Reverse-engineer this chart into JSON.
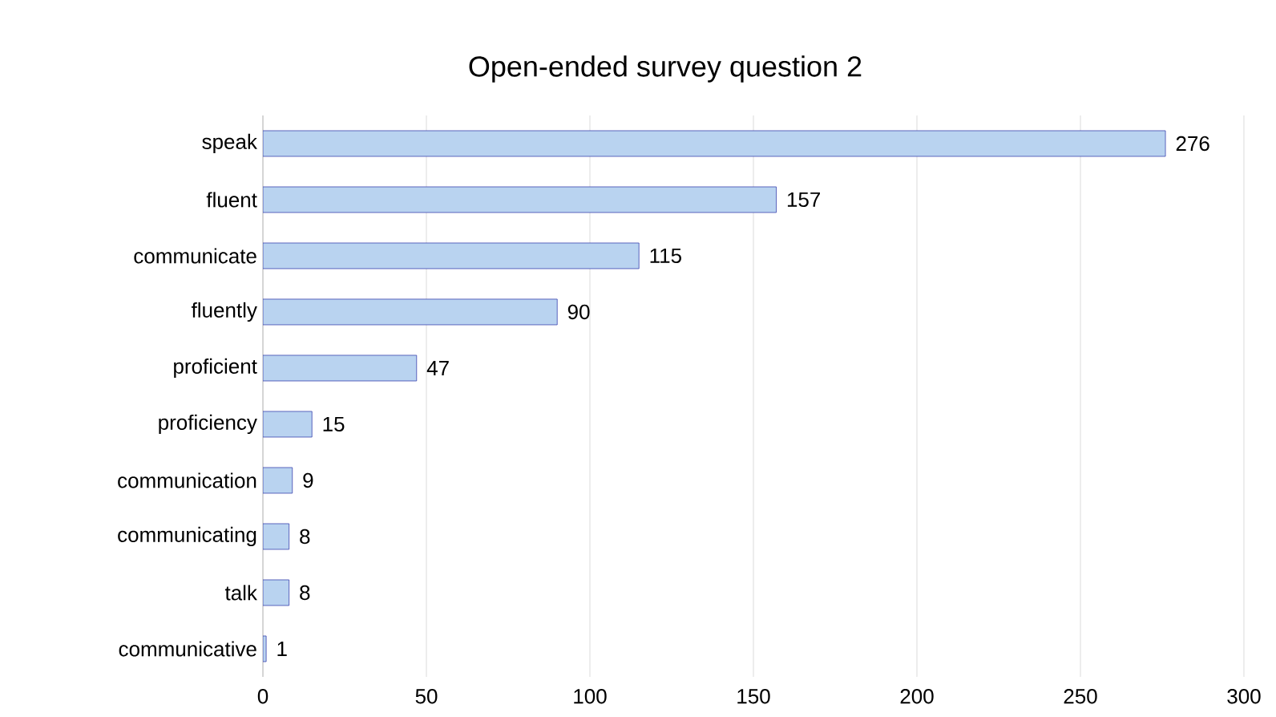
{
  "chart_data": {
    "type": "bar",
    "orientation": "horizontal",
    "title": "Open-ended survey question 2",
    "categories": [
      "speak",
      "fluent",
      "communicate",
      "fluently",
      "proficient",
      "proficiency",
      "communication",
      "communicating",
      "talk",
      "communicative"
    ],
    "values": [
      276,
      157,
      115,
      90,
      47,
      15,
      9,
      8,
      8,
      1
    ],
    "color": "#b9d3f0",
    "xlim": [
      0,
      300
    ],
    "xticks": [
      0,
      50,
      100,
      150,
      200,
      250,
      300
    ],
    "grid": "x",
    "data_labels": true
  }
}
